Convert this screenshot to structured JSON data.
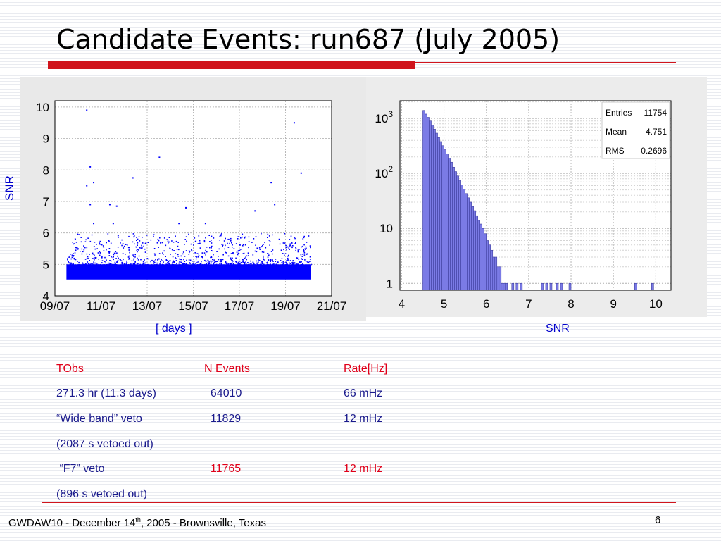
{
  "slide": {
    "title": "Candidate Events: run687 (July 2005)",
    "footer_prefix": "GWDAW10 - December 14",
    "footer_sup": "th",
    "footer_suffix": ", 2005 - Brownsville, Texas",
    "page_number": "6"
  },
  "plots": {
    "left_ylabel": "SNR",
    "left_xlabel": "[ days ]",
    "right_xlabel": "SNR"
  },
  "stats_box": {
    "rows": [
      {
        "label": "Entries",
        "value": "11754"
      },
      {
        "label": "Mean",
        "value": "4.751"
      },
      {
        "label": "RMS",
        "value": "0.2696"
      }
    ]
  },
  "table": {
    "rows": [
      {
        "c1": "TObs",
        "c2": "N Events",
        "c3": "Rate[Hz]",
        "style": [
          "red",
          "red",
          "red"
        ]
      },
      {
        "c1": "271.3 hr (11.3 days)",
        "c2": "  64010",
        "c3": "66 mHz",
        "style": [
          "blue",
          "blue",
          "blue"
        ]
      },
      {
        "c1": "“Wide band” veto",
        "c2": "  11829",
        "c3": "12 mHz",
        "style": [
          "blue",
          "blue",
          "blue"
        ]
      },
      {
        "c1": "(2087 s vetoed out)",
        "c2": "",
        "c3": "",
        "style": [
          "blue",
          "blue",
          "blue"
        ]
      },
      {
        "c1": " “F7” veto",
        "c2": "  11765",
        "c3": "12 mHz",
        "style": [
          "blue",
          "red",
          "red"
        ]
      },
      {
        "c1": "(896 s vetoed out)",
        "c2": "",
        "c3": "",
        "style": [
          "blue",
          "blue",
          "blue"
        ]
      }
    ]
  },
  "colors": {
    "title_rule": "#d0141c",
    "scatter_points": "#0000ff",
    "histogram_fill": "#7b7be6",
    "histogram_edge": "#4040a0",
    "label_blue": "#0000cc",
    "table_red": "#e0001a",
    "table_blue": "#1a1a8c"
  },
  "chart_data": [
    {
      "type": "scatter",
      "x_tick_labels": [
        "09/07",
        "11/07",
        "13/07",
        "15/07",
        "17/07",
        "19/07",
        "21/07"
      ],
      "y_tick_labels": [
        "4",
        "5",
        "6",
        "7",
        "8",
        "9",
        "10"
      ],
      "xlabel": "[ days ]",
      "ylabel": "SNR",
      "ylim": [
        4,
        10.2
      ],
      "grid": true,
      "series": [
        {
          "x": [
            "10/07",
            "10/07",
            "10/07",
            "10/07",
            "10/07",
            "10/07",
            "11/07",
            "11/07",
            "11/07",
            "12/07",
            "13/07",
            "14/07",
            "14/07",
            "15/07",
            "17/07",
            "18/07",
            "18/07",
            "19/07",
            "19/07"
          ],
          "y": [
            9.9,
            8.1,
            7.6,
            7.5,
            6.9,
            6.3,
            6.9,
            6.3,
            6.85,
            7.75,
            8.4,
            6.8,
            6.3,
            6.3,
            6.7,
            7.6,
            6.9,
            7.9,
            9.5
          ]
        }
      ]
    },
    {
      "type": "bar",
      "xlabel": "SNR",
      "x_tick_labels": [
        "4",
        "5",
        "6",
        "7",
        "8",
        "9",
        "10"
      ],
      "y_tick_labels": [
        "1",
        "10",
        "10^2",
        "10^3"
      ],
      "y_scale": "log",
      "xlim": [
        3.96,
        10.36
      ],
      "ylim": [
        0.75,
        2100
      ],
      "grid": true,
      "bin_width": 0.05,
      "bin_start": 4.5,
      "values": [
        1400,
        1200,
        1050,
        900,
        760,
        640,
        540,
        450,
        380,
        320,
        270,
        225,
        190,
        160,
        130,
        108,
        90,
        75,
        62,
        52,
        43,
        36,
        30,
        25,
        21,
        17,
        14,
        12,
        10,
        8,
        6,
        5,
        4,
        3,
        3,
        2,
        2,
        1,
        1,
        1,
        0,
        0,
        1,
        0,
        1,
        0,
        1,
        0,
        0,
        0,
        0,
        0,
        0,
        0,
        0,
        0,
        1,
        0,
        1,
        0,
        1,
        0,
        0,
        1,
        0,
        1,
        0,
        0,
        0,
        1,
        0,
        0,
        0,
        0,
        0,
        0,
        0,
        0,
        0,
        0,
        0,
        0,
        0,
        0,
        0,
        0,
        0,
        0,
        0,
        0,
        0,
        0,
        0,
        0,
        0,
        0,
        0,
        0,
        0,
        0,
        1,
        0,
        0,
        0,
        0,
        0,
        0,
        0,
        1
      ]
    }
  ]
}
